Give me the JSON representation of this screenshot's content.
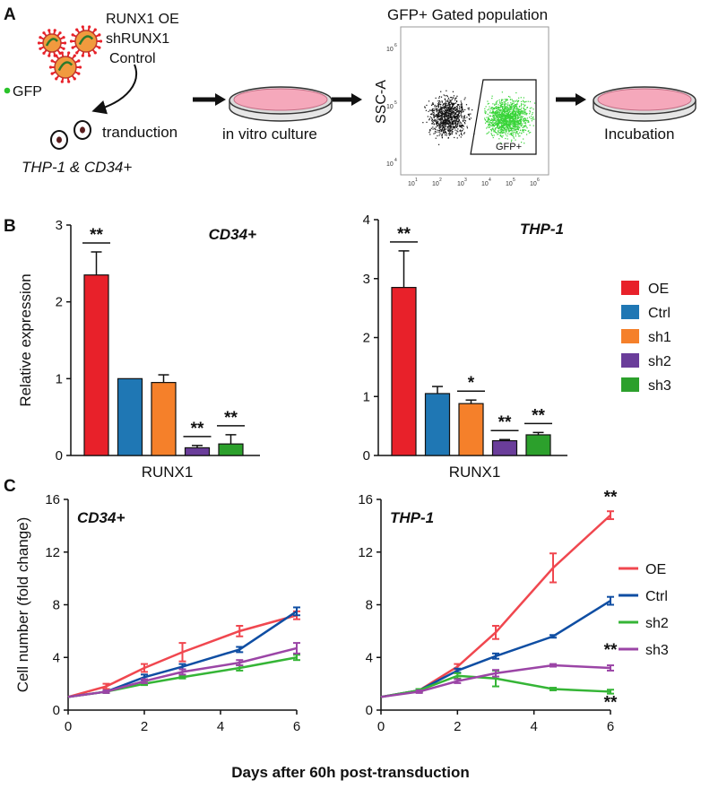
{
  "panels": {
    "a": "A",
    "b": "B",
    "c": "C"
  },
  "workflow": {
    "virus_labels": [
      "RUNX1 OE",
      "shRUNX1",
      "Control"
    ],
    "gfp_label": "GFP",
    "transduction": "tranduction",
    "cells": "THP-1 & CD34+",
    "in_vitro": "in vitro culture",
    "gated_title": "GFP+ Gated population",
    "ssc": "SSC-A",
    "gfp_gate": "GFP+",
    "incubation": "Incubation",
    "flow_yticks": [
      "10",
      "6",
      "10",
      "5",
      "10",
      "4"
    ],
    "flow_xticks": [
      "10",
      "1",
      "10",
      "2",
      "10",
      "3",
      "10",
      "4",
      "10",
      "5",
      "10",
      "6"
    ]
  },
  "colors": {
    "OE_bar": "#e8212a",
    "Ctrl_bar": "#1f77b4",
    "sh1_bar": "#f5802a",
    "sh2_bar": "#6a3d9a",
    "sh3_bar": "#2ca02c",
    "OE_line": "#f0474f",
    "Ctrl_line": "#0f4ea3",
    "sh2_line": "#35b536",
    "sh3_line": "#9b45a6",
    "gfp": "#38d438",
    "dish": "#f5a8bb"
  },
  "chart_data": [
    {
      "type": "bar",
      "title": "CD34+",
      "xlabel": "RUNX1",
      "ylabel": "Relative expression",
      "ylim": [
        0,
        3
      ],
      "yticks": [
        "0",
        "1",
        "2",
        "3"
      ],
      "categories": [
        "OE",
        "Ctrl",
        "sh1",
        "sh2",
        "sh3"
      ],
      "values": [
        2.35,
        1.0,
        0.95,
        0.1,
        0.15
      ],
      "errors": [
        0.3,
        0,
        0.1,
        0.03,
        0.12
      ],
      "stars": [
        "**",
        "",
        "",
        "**",
        "**"
      ],
      "legend": [
        "OE",
        "Ctrl",
        "sh1",
        "sh2",
        "sh3"
      ]
    },
    {
      "type": "bar",
      "title": "THP-1",
      "xlabel": "RUNX1",
      "ylabel": "",
      "ylim": [
        0,
        4
      ],
      "yticks": [
        "0",
        "1",
        "2",
        "3",
        "4"
      ],
      "categories": [
        "OE",
        "Ctrl",
        "sh1",
        "sh2",
        "sh3"
      ],
      "values": [
        2.85,
        1.05,
        0.88,
        0.25,
        0.35
      ],
      "errors": [
        0.62,
        0.12,
        0.06,
        0.02,
        0.04
      ],
      "stars": [
        "**",
        "",
        "*",
        "**",
        "**"
      ]
    },
    {
      "type": "line",
      "title": "CD34+",
      "xlabel": "Days after 60h post-transduction",
      "ylabel": "Cell number (fold change)",
      "xlim": [
        0,
        6
      ],
      "ylim": [
        0,
        16
      ],
      "xticks": [
        "0",
        "2",
        "4",
        "6"
      ],
      "yticks": [
        "0",
        "4",
        "8",
        "12",
        "16"
      ],
      "x": [
        0,
        1,
        2,
        3,
        4.5,
        6
      ],
      "series": [
        {
          "name": "OE",
          "values": [
            1,
            1.8,
            3.2,
            4.4,
            6.0,
            7.2
          ],
          "errors": [
            0,
            0.2,
            0.3,
            0.7,
            0.4,
            0.3
          ]
        },
        {
          "name": "Ctrl",
          "values": [
            1,
            1.4,
            2.5,
            3.3,
            4.6,
            7.5
          ],
          "errors": [
            0,
            0.1,
            0.2,
            0.2,
            0.2,
            0.3
          ]
        },
        {
          "name": "sh2",
          "values": [
            1,
            1.4,
            2.0,
            2.5,
            3.2,
            4.0
          ],
          "errors": [
            0,
            0.1,
            0.1,
            0.1,
            0.2,
            0.2
          ]
        },
        {
          "name": "sh3",
          "values": [
            1,
            1.4,
            2.2,
            2.9,
            3.6,
            4.7
          ],
          "errors": [
            0,
            0.1,
            0.15,
            0.2,
            0.2,
            0.4
          ]
        }
      ]
    },
    {
      "type": "line",
      "title": "THP-1",
      "xlabel": "",
      "ylabel": "",
      "xlim": [
        0,
        6
      ],
      "ylim": [
        0,
        16
      ],
      "xticks": [
        "0",
        "2",
        "4",
        "6"
      ],
      "yticks": [
        "0",
        "4",
        "8",
        "12",
        "16"
      ],
      "x": [
        0,
        1,
        2,
        3,
        4.5,
        6
      ],
      "series": [
        {
          "name": "OE",
          "values": [
            1,
            1.5,
            3.3,
            5.9,
            10.8,
            14.8
          ],
          "errors": [
            0,
            0.1,
            0.2,
            0.5,
            1.1,
            0.3
          ]
        },
        {
          "name": "Ctrl",
          "values": [
            1,
            1.5,
            3.0,
            4.1,
            5.6,
            8.3
          ],
          "errors": [
            0,
            0.1,
            0.15,
            0.2,
            0.1,
            0.3
          ]
        },
        {
          "name": "sh2",
          "values": [
            1,
            1.5,
            2.6,
            2.4,
            1.6,
            1.4
          ],
          "errors": [
            0,
            0.1,
            0.2,
            0.6,
            0.1,
            0.15
          ]
        },
        {
          "name": "sh3",
          "values": [
            1,
            1.4,
            2.2,
            2.8,
            3.4,
            3.2
          ],
          "errors": [
            0,
            0.1,
            0.15,
            0.25,
            0.1,
            0.2
          ]
        }
      ],
      "stars": [
        {
          "series": "OE",
          "text": "**"
        },
        {
          "series": "sh3",
          "text": "**"
        },
        {
          "series": "sh2",
          "text": "**"
        }
      ],
      "legend": [
        "OE",
        "Ctrl",
        "sh2",
        "sh3"
      ]
    }
  ]
}
